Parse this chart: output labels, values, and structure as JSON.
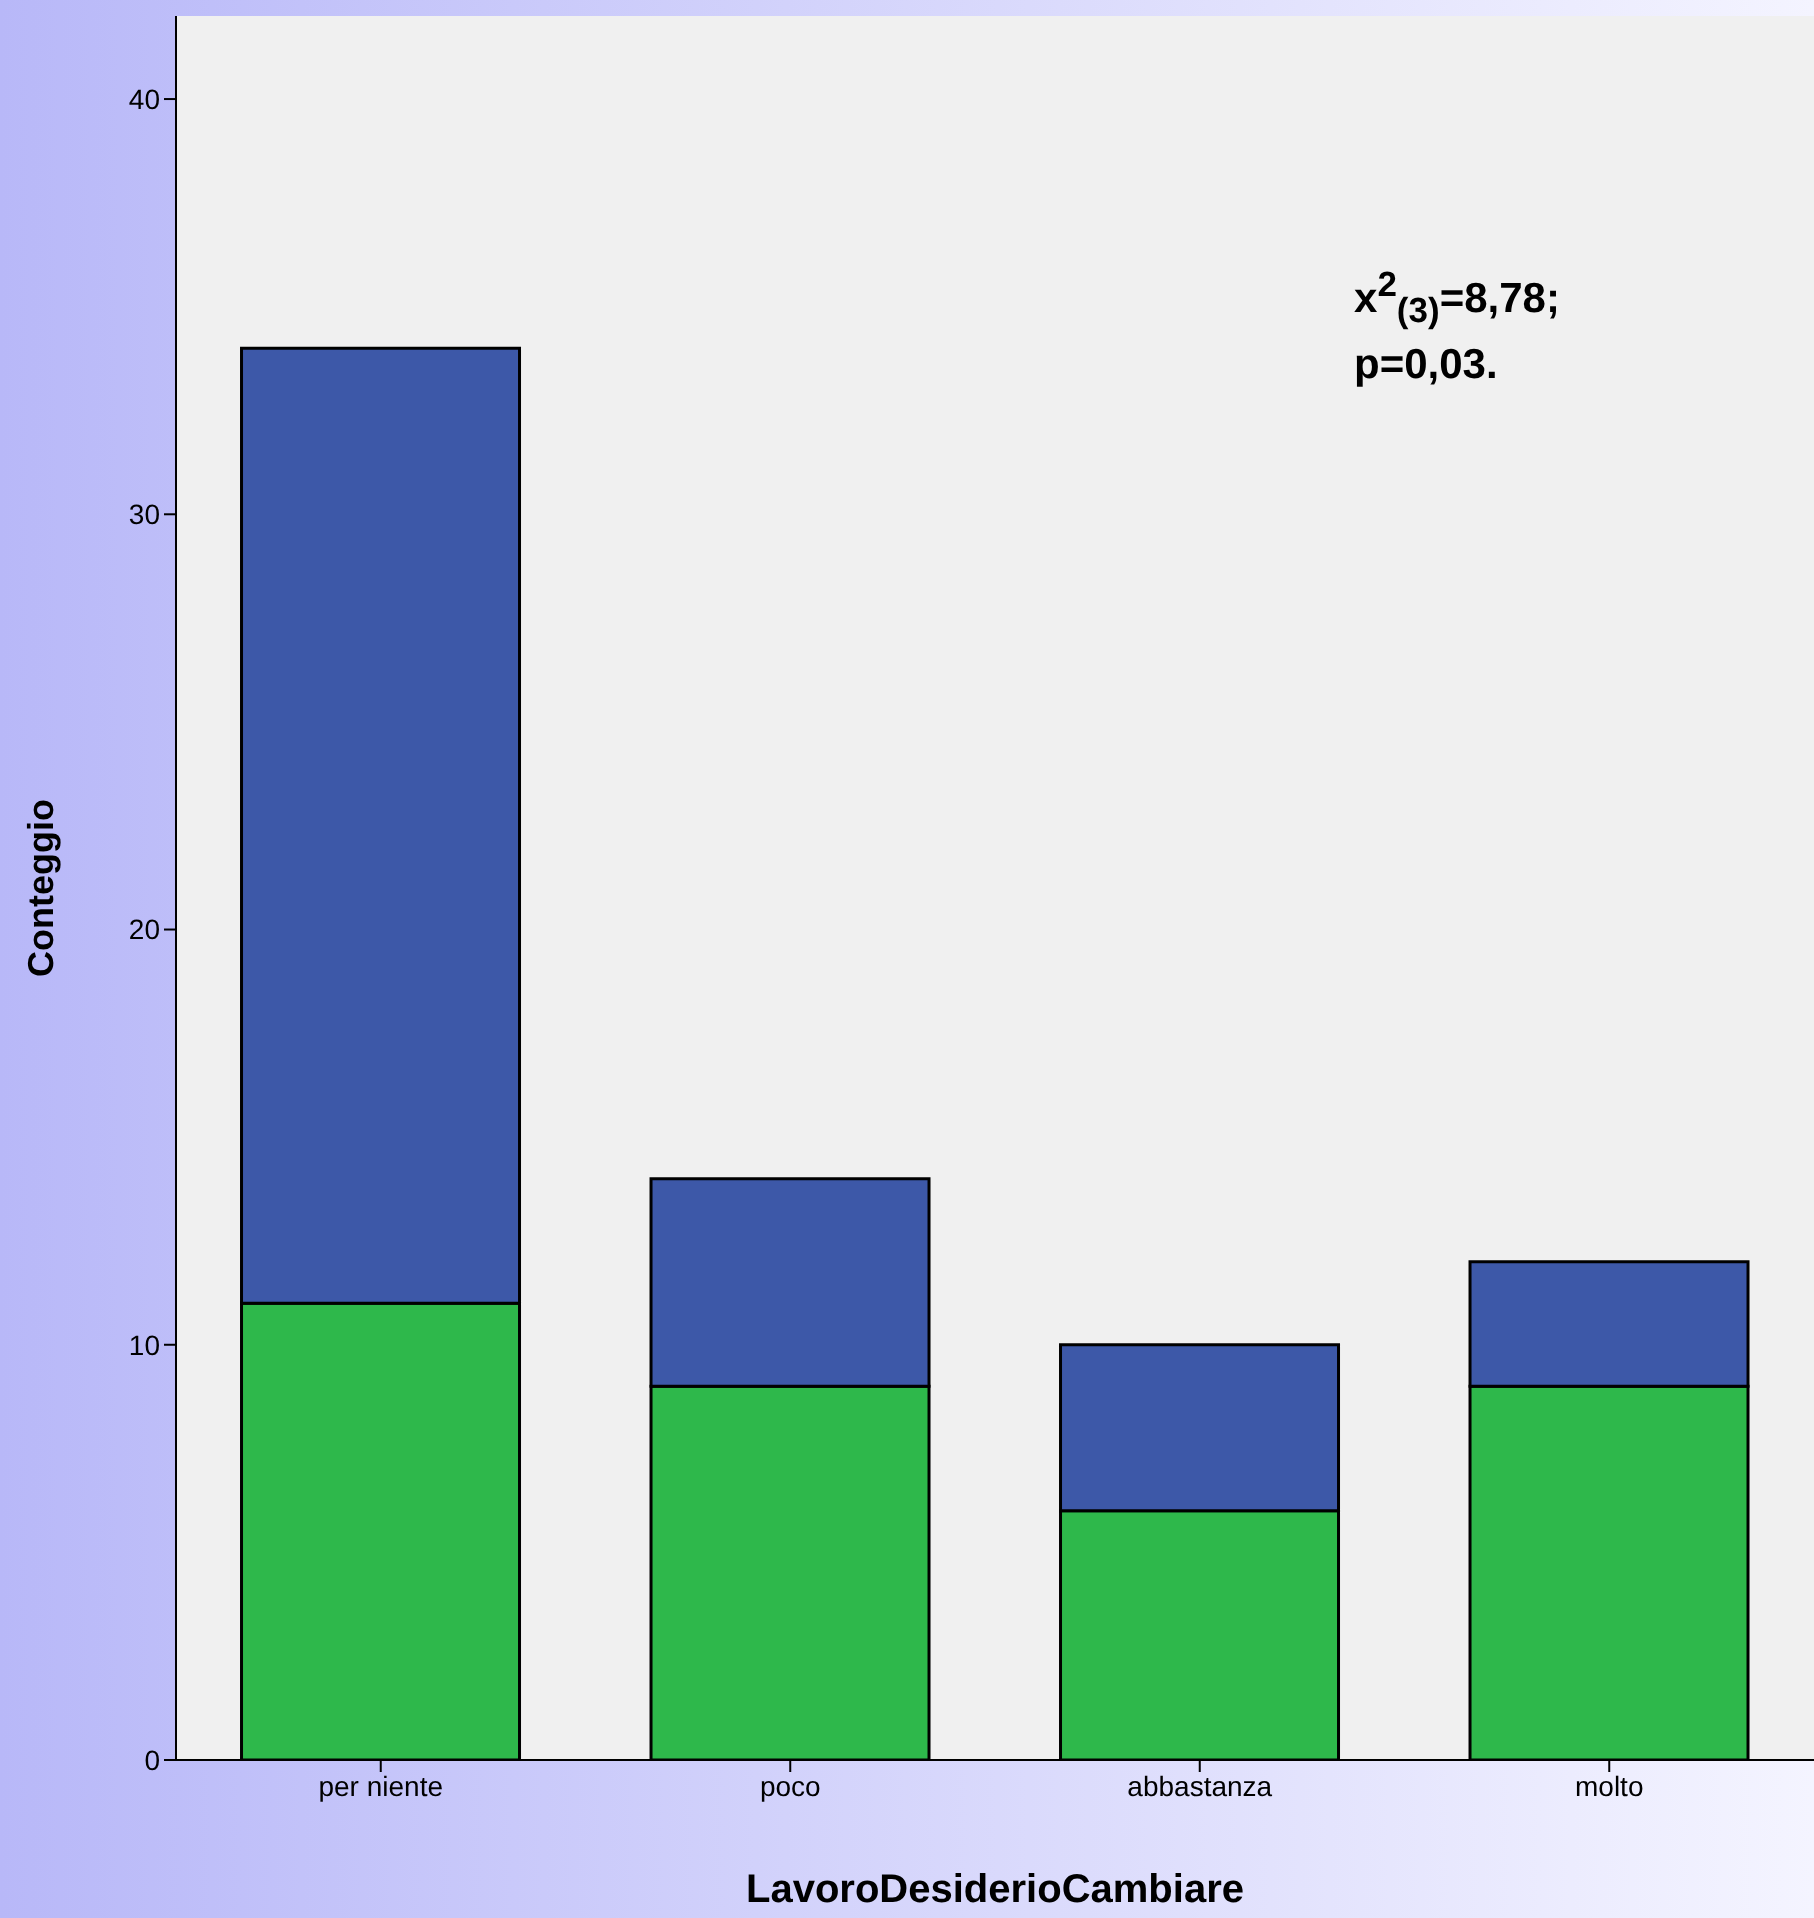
{
  "chart_data": {
    "type": "bar",
    "stacked": true,
    "categories": [
      "per niente",
      "poco",
      "abbastanza",
      "molto"
    ],
    "series": [
      {
        "color": "#2eb84b",
        "values": [
          11,
          9,
          6,
          9
        ]
      },
      {
        "color": "#3d58a8",
        "values": [
          23,
          5,
          4,
          3
        ]
      }
    ],
    "xlabel": "LavoroDesiderioCambiare",
    "ylabel": "Conteggio",
    "ylim": [
      0,
      42
    ],
    "yticks": [
      0,
      10,
      20,
      30,
      40
    ],
    "annotations": [
      "x$^{2}$$_{(3)}$=8,78;",
      "p=0,03."
    ]
  }
}
